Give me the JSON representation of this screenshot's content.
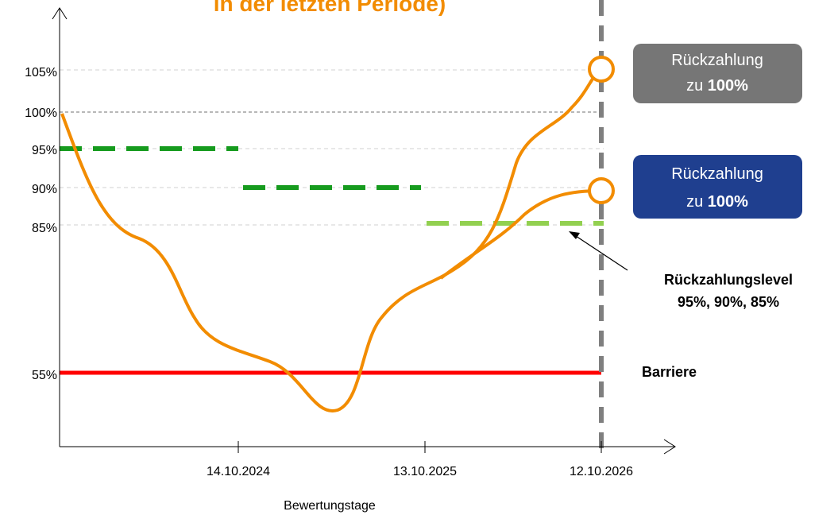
{
  "title": "in der letzten Periode)",
  "y_axis_labels": [
    "105%",
    "100%",
    "95%",
    "90%",
    "85%",
    "55%"
  ],
  "x_axis_labels": [
    "14.10.2024",
    "13.10.2025",
    "12.10.2026"
  ],
  "x_axis_title": "Bewertungstage",
  "callouts": [
    {
      "line1": "Rückzahlung",
      "line2_prefix": "zu",
      "line2_bold": "100%"
    },
    {
      "line1": "Rückzahlung",
      "line2_prefix": "zu",
      "line2_bold": "100%"
    }
  ],
  "annotation": {
    "line1": "Rückzahlungslevel",
    "line2": "95%, 90%, 85%"
  },
  "barrier_label": "Barriere"
}
